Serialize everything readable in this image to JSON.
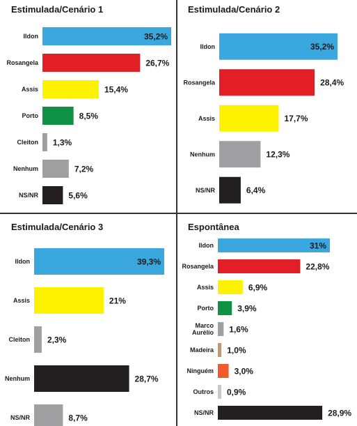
{
  "chart_data": [
    {
      "type": "bar",
      "orientation": "horizontal",
      "title": "Estimulada/Cenário 1",
      "categories": [
        "Ildon",
        "Rosangela",
        "Assis",
        "Porto",
        "Cleiton",
        "Nenhum",
        "NS/NR"
      ],
      "values": [
        35.2,
        26.7,
        15.4,
        8.5,
        1.3,
        7.2,
        5.6
      ],
      "value_labels": [
        "35,2%",
        "26,7%",
        "15,4%",
        "8,5%",
        "1,3%",
        "7,2%",
        "5,6%"
      ],
      "colors": [
        "#3aa8df",
        "#e31e26",
        "#fff200",
        "#0f9246",
        "#a0a0a2",
        "#a0a0a2",
        "#231f20"
      ],
      "xlabel": "",
      "ylabel": "",
      "xlim": [
        0,
        35.2
      ],
      "grid": false,
      "legend": "none"
    },
    {
      "type": "bar",
      "orientation": "horizontal",
      "title": "Estimulada/Cenário 2",
      "categories": [
        "Ildon",
        "Rosangela",
        "Assis",
        "Nenhum",
        "NS/NR"
      ],
      "values": [
        35.2,
        28.4,
        17.7,
        12.3,
        6.4
      ],
      "value_labels": [
        "35,2%",
        "28,4%",
        "17,7%",
        "12,3%",
        "6,4%"
      ],
      "colors": [
        "#3aa8df",
        "#e31e26",
        "#fff200",
        "#a0a0a2",
        "#231f20"
      ],
      "xlabel": "",
      "ylabel": "",
      "xlim": [
        0,
        35.2
      ],
      "grid": false,
      "legend": "none"
    },
    {
      "type": "bar",
      "orientation": "horizontal",
      "title": "Estimulada/Cenário 3",
      "categories": [
        "Ildon",
        "Assis",
        "Cleiton",
        "Nenhum",
        "NS/NR"
      ],
      "values": [
        39.3,
        21,
        2.3,
        28.7,
        8.7
      ],
      "value_labels": [
        "39,3%",
        "21%",
        "2,3%",
        "28,7%",
        "8,7%"
      ],
      "colors": [
        "#3aa8df",
        "#fff200",
        "#a0a0a2",
        "#231f20",
        "#a0a0a2"
      ],
      "xlabel": "",
      "ylabel": "",
      "xlim": [
        0,
        39.3
      ],
      "grid": false,
      "legend": "none"
    },
    {
      "type": "bar",
      "orientation": "horizontal",
      "title": "Espontânea",
      "categories": [
        "Ildon",
        "Rosangela",
        "Assis",
        "Porto",
        "Marco Aurélio",
        "Madeira",
        "Ninguém",
        "Outros",
        "NS/NR"
      ],
      "values": [
        31,
        22.8,
        6.9,
        3.9,
        1.6,
        1.0,
        3.0,
        0.9,
        28.9
      ],
      "value_labels": [
        "31%",
        "22,8%",
        "6,9%",
        "3,9%",
        "1,6%",
        "1,0%",
        "3,0%",
        "0,9%",
        "28,9%"
      ],
      "colors": [
        "#3aa8df",
        "#e31e26",
        "#fff200",
        "#0f9246",
        "#a0a0a2",
        "#c49a6c",
        "#f15a29",
        "#c8c8ca",
        "#231f20"
      ],
      "xlabel": "",
      "ylabel": "",
      "xlim": [
        0,
        31
      ],
      "grid": false,
      "legend": "none"
    }
  ]
}
